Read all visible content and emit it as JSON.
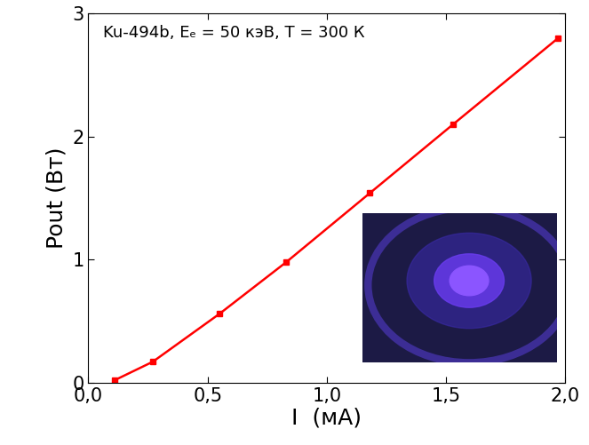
{
  "chart_data": {
    "type": "line",
    "annotation": "Ku-494b, Eₑ = 50 кэВ, T = 300 К",
    "x_label": "I  (мА)",
    "y_label": "Pout (Вт)",
    "x": [
      0.11,
      0.27,
      0.55,
      0.83,
      1.18,
      1.53,
      1.97
    ],
    "values": [
      0.02,
      0.17,
      0.56,
      0.98,
      1.54,
      2.1,
      2.8
    ],
    "color": "#ff0000",
    "marker": "square",
    "line_style": "solid",
    "xlim": [
      0,
      2.0
    ],
    "ylim": [
      0,
      3
    ],
    "xticks": [
      {
        "value": 0,
        "label": "0,0"
      },
      {
        "value": 0.5,
        "label": "0,5"
      },
      {
        "value": 1.0,
        "label": "1,0"
      },
      {
        "value": 1.5,
        "label": "1,5"
      },
      {
        "value": 2.0,
        "label": "2,0"
      }
    ],
    "yticks": [
      0,
      1,
      2,
      3
    ],
    "grid": false
  }
}
